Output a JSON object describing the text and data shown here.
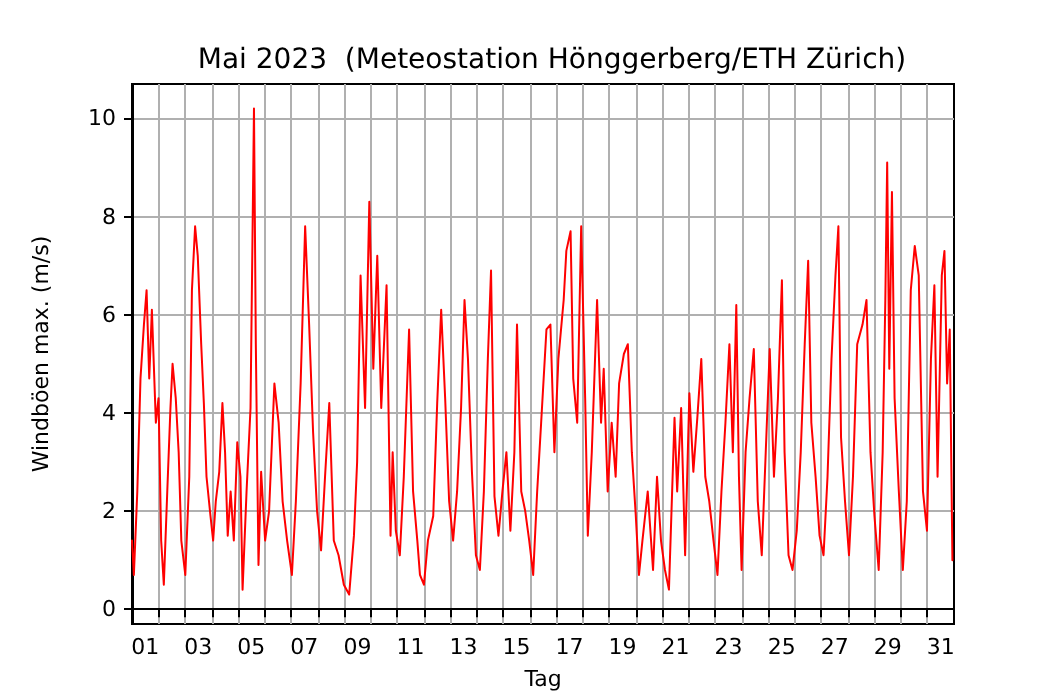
{
  "chart_data": {
    "type": "line",
    "title": "Mai 2023  (Meteostation Hönggerberg/ETH Zürich)",
    "xlabel": "Tag",
    "ylabel": "Windböen max. (m/s)",
    "xlim": [
      1,
      32
    ],
    "ylim": [
      -0.3,
      10.7
    ],
    "xticks": [
      {
        "value": 1.5,
        "label": "01"
      },
      {
        "value": 3.5,
        "label": "03"
      },
      {
        "value": 5.5,
        "label": "05"
      },
      {
        "value": 7.5,
        "label": "07"
      },
      {
        "value": 9.5,
        "label": "09"
      },
      {
        "value": 11.5,
        "label": "11"
      },
      {
        "value": 13.5,
        "label": "13"
      },
      {
        "value": 15.5,
        "label": "15"
      },
      {
        "value": 17.5,
        "label": "17"
      },
      {
        "value": 19.5,
        "label": "19"
      },
      {
        "value": 21.5,
        "label": "21"
      },
      {
        "value": 23.5,
        "label": "23"
      },
      {
        "value": 25.5,
        "label": "25"
      },
      {
        "value": 27.5,
        "label": "27"
      },
      {
        "value": 29.5,
        "label": "29"
      },
      {
        "value": 31.5,
        "label": "31"
      },
      {
        "value": 2,
        "label": null
      },
      {
        "value": 3,
        "label": null
      },
      {
        "value": 4,
        "label": null
      },
      {
        "value": 5,
        "label": null
      },
      {
        "value": 6,
        "label": null
      },
      {
        "value": 7,
        "label": null
      },
      {
        "value": 8,
        "label": null
      },
      {
        "value": 9,
        "label": null
      },
      {
        "value": 10,
        "label": null
      },
      {
        "value": 11,
        "label": null
      },
      {
        "value": 12,
        "label": null
      },
      {
        "value": 13,
        "label": null
      },
      {
        "value": 14,
        "label": null
      },
      {
        "value": 15,
        "label": null
      },
      {
        "value": 16,
        "label": null
      },
      {
        "value": 17,
        "label": null
      },
      {
        "value": 18,
        "label": null
      },
      {
        "value": 19,
        "label": null
      },
      {
        "value": 20,
        "label": null
      },
      {
        "value": 21,
        "label": null
      },
      {
        "value": 22,
        "label": null
      },
      {
        "value": 23,
        "label": null
      },
      {
        "value": 24,
        "label": null
      },
      {
        "value": 25,
        "label": null
      },
      {
        "value": 26,
        "label": null
      },
      {
        "value": 27,
        "label": null
      },
      {
        "value": 28,
        "label": null
      },
      {
        "value": 29,
        "label": null
      },
      {
        "value": 30,
        "label": null
      },
      {
        "value": 31,
        "label": null
      }
    ],
    "yticks": [
      0,
      2,
      4,
      6,
      8,
      10
    ],
    "grid": true,
    "marker": "none",
    "line_style": "solid",
    "series": [
      {
        "color": "#ff0000",
        "x": [
          1.0,
          1.07,
          1.2,
          1.32,
          1.45,
          1.55,
          1.65,
          1.75,
          1.9,
          2.0,
          2.1,
          2.2,
          2.33,
          2.45,
          2.53,
          2.65,
          2.76,
          2.86,
          3.01,
          3.16,
          3.26,
          3.38,
          3.48,
          3.61,
          3.71,
          3.81,
          3.96,
          4.06,
          4.16,
          4.29,
          4.41,
          4.51,
          4.61,
          4.72,
          4.84,
          4.97,
          5.09,
          5.17,
          5.32,
          5.47,
          5.6,
          5.67,
          5.77,
          5.87,
          6.02,
          6.17,
          6.37,
          6.53,
          6.68,
          6.85,
          7.03,
          7.18,
          7.36,
          7.53,
          7.68,
          7.83,
          7.98,
          8.13,
          8.28,
          8.44,
          8.61,
          8.79,
          8.99,
          9.19,
          9.37,
          9.49,
          9.62,
          9.79,
          9.95,
          10.1,
          10.25,
          10.4,
          10.6,
          10.75,
          10.83,
          10.95,
          11.1,
          11.25,
          11.45,
          11.6,
          11.76,
          11.86,
          12.01,
          12.16,
          12.36,
          12.51,
          12.66,
          12.81,
          12.96,
          13.11,
          13.26,
          13.41,
          13.54,
          13.67,
          13.82,
          13.97,
          14.12,
          14.27,
          14.42,
          14.54,
          14.67,
          14.82,
          14.97,
          15.12,
          15.27,
          15.42,
          15.52,
          15.68,
          15.83,
          15.98,
          16.13,
          16.28,
          16.43,
          16.63,
          16.78,
          16.93,
          17.08,
          17.28,
          17.38,
          17.54,
          17.64,
          17.79,
          17.94,
          18.09,
          18.19,
          18.34,
          18.54,
          18.69,
          18.79,
          18.94,
          19.09,
          19.24,
          19.37,
          19.55,
          19.7,
          19.85,
          20.0,
          20.12,
          20.25,
          20.45,
          20.65,
          20.8,
          20.95,
          21.1,
          21.25,
          21.46,
          21.56,
          21.71,
          21.86,
          22.02,
          22.17,
          22.32,
          22.47,
          22.62,
          22.77,
          22.93,
          23.08,
          23.23,
          23.38,
          23.53,
          23.66,
          23.79,
          23.89,
          23.99,
          24.14,
          24.29,
          24.45,
          24.6,
          24.75,
          24.9,
          25.05,
          25.21,
          25.36,
          25.51,
          25.61,
          25.76,
          25.91,
          26.07,
          26.22,
          26.37,
          26.5,
          26.62,
          26.78,
          26.93,
          27.08,
          27.23,
          27.38,
          27.53,
          27.64,
          27.74,
          27.89,
          28.04,
          28.19,
          28.35,
          28.55,
          28.7,
          28.85,
          29.0,
          29.16,
          29.31,
          29.41,
          29.48,
          29.56,
          29.66,
          29.76,
          29.92,
          30.07,
          30.22,
          30.37,
          30.52,
          30.67,
          30.83,
          30.98,
          31.13,
          31.26,
          31.38,
          31.54,
          31.64,
          31.74,
          31.84,
          31.94
        ],
        "values": [
          1.4,
          0.7,
          2.4,
          4.7,
          5.8,
          6.5,
          4.7,
          6.1,
          3.8,
          4.3,
          1.4,
          0.5,
          2.4,
          4.1,
          5.0,
          4.3,
          3.2,
          1.4,
          0.7,
          2.7,
          6.5,
          7.8,
          7.2,
          5.4,
          4.2,
          2.7,
          1.9,
          1.4,
          2.2,
          2.8,
          4.2,
          3.2,
          1.5,
          2.4,
          1.4,
          3.4,
          2.7,
          0.4,
          2.4,
          4.1,
          10.2,
          5.4,
          0.9,
          2.8,
          1.4,
          2.0,
          4.6,
          3.8,
          2.2,
          1.4,
          0.7,
          2.2,
          4.6,
          7.8,
          5.8,
          3.6,
          2.0,
          1.2,
          2.7,
          4.2,
          1.4,
          1.1,
          0.5,
          0.3,
          1.5,
          3.0,
          6.8,
          4.1,
          8.3,
          4.9,
          7.2,
          4.1,
          6.6,
          1.5,
          3.2,
          1.6,
          1.1,
          2.7,
          5.7,
          2.4,
          1.4,
          0.7,
          0.5,
          1.4,
          1.9,
          4.2,
          6.1,
          4.3,
          2.2,
          1.4,
          2.4,
          4.1,
          6.3,
          5.1,
          2.8,
          1.1,
          0.8,
          2.4,
          5.1,
          6.9,
          2.3,
          1.5,
          2.4,
          3.2,
          1.6,
          3.2,
          5.8,
          2.4,
          2.0,
          1.4,
          0.7,
          2.4,
          3.8,
          5.7,
          5.8,
          3.2,
          5.1,
          6.3,
          7.3,
          7.7,
          4.7,
          3.8,
          7.8,
          4.3,
          1.5,
          3.2,
          6.3,
          3.8,
          4.9,
          2.4,
          3.8,
          2.7,
          4.6,
          5.2,
          5.4,
          3.2,
          1.9,
          0.7,
          1.4,
          2.4,
          0.8,
          2.7,
          1.4,
          0.8,
          0.4,
          3.9,
          2.4,
          4.1,
          1.1,
          4.4,
          2.8,
          3.9,
          5.1,
          2.7,
          2.2,
          1.4,
          0.7,
          2.4,
          3.8,
          5.4,
          3.2,
          6.2,
          2.7,
          0.8,
          3.2,
          4.3,
          5.3,
          2.2,
          1.1,
          3.2,
          5.3,
          2.7,
          4.3,
          6.7,
          3.2,
          1.1,
          0.8,
          1.6,
          3.2,
          5.4,
          7.1,
          3.8,
          2.7,
          1.5,
          1.1,
          2.7,
          5.1,
          6.8,
          7.8,
          3.5,
          2.2,
          1.1,
          2.7,
          5.4,
          5.8,
          6.3,
          3.2,
          1.9,
          0.8,
          3.2,
          6.3,
          9.1,
          4.9,
          8.5,
          4.3,
          2.4,
          0.8,
          2.2,
          6.5,
          7.4,
          6.8,
          2.4,
          1.6,
          5.1,
          6.6,
          2.7,
          6.8,
          7.3,
          4.6,
          5.7,
          1.0
        ]
      }
    ]
  }
}
